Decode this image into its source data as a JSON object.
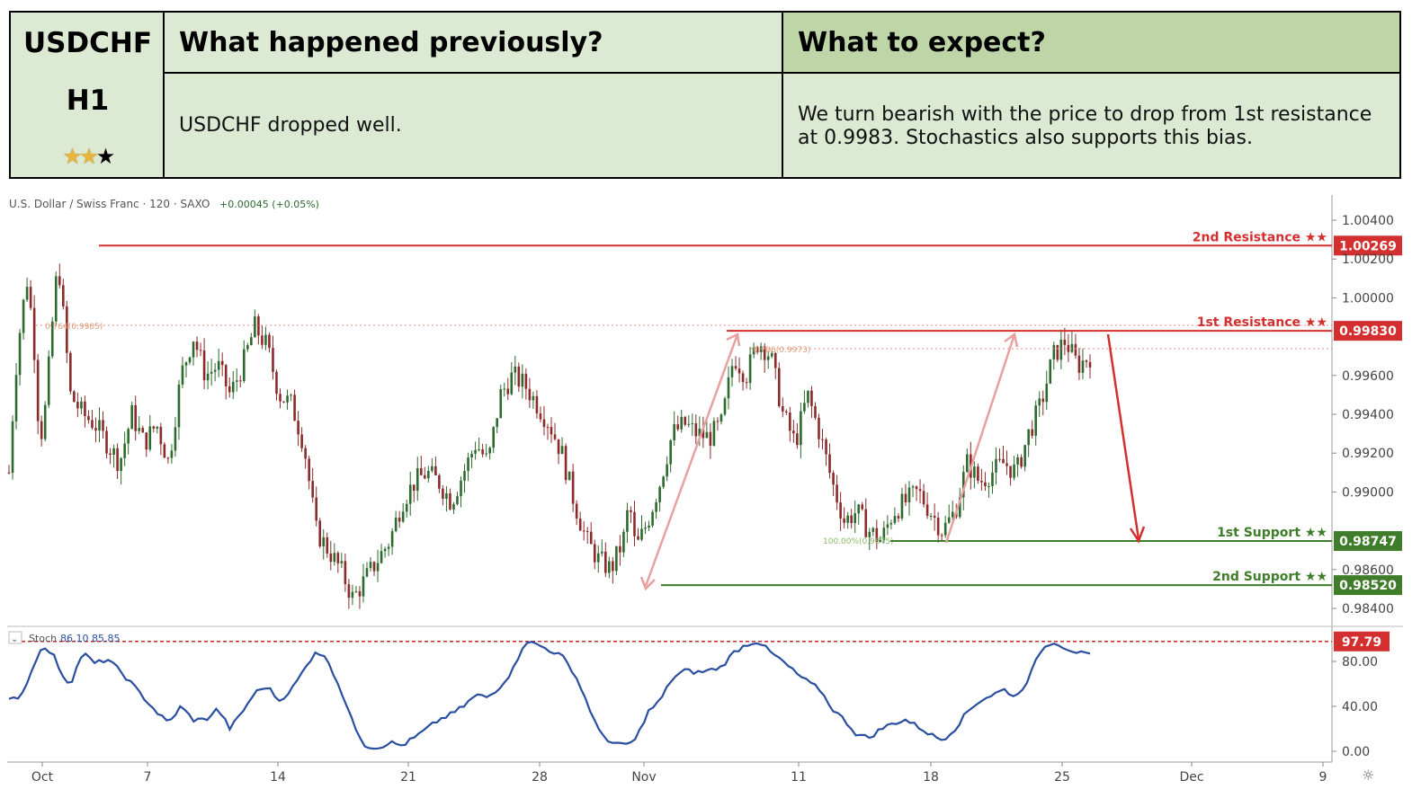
{
  "header": {
    "symbol": "USDCHF",
    "timeframe": "H1",
    "rating": {
      "filled": 2,
      "total": 3
    },
    "previous_title": "What happened previously?",
    "previous_text": "USDCHF dropped well.",
    "expect_title": "What to expect?",
    "expect_line1": "We turn bearish with the price to drop from 1st resistance",
    "expect_line2": "at 0.9983. Stochastics also supports this bias."
  },
  "chart_info": {
    "instrument": "U.S. Dollar / Swiss Franc · 120 · SAXO",
    "change": "+0.00045 (+0.05%)"
  },
  "chart_data": {
    "type": "candlestick",
    "title": "U.S. Dollar / Swiss Franc · 120 · SAXO",
    "x_ticks": [
      "Oct",
      "7",
      "14",
      "21",
      "28",
      "Nov",
      "11",
      "18",
      "25",
      "Dec",
      "9"
    ],
    "y_ticks": [
      "1.00400",
      "1.00200",
      "1.00000",
      "0.99600",
      "0.99400",
      "0.99200",
      "0.99000",
      "0.98600",
      "0.98400"
    ],
    "ylim": [
      0.9834,
      1.0045
    ],
    "price_path": [
      [
        0,
        0.991
      ],
      [
        1,
        0.996
      ],
      [
        2,
        0.999
      ],
      [
        3,
        1.001
      ],
      [
        4,
        0.998
      ],
      [
        5,
        0.9925
      ],
      [
        6,
        0.9945
      ],
      [
        7,
        0.9985
      ],
      [
        8,
        1.002
      ],
      [
        9,
        0.9985
      ],
      [
        10,
        0.995
      ],
      [
        12,
        0.994
      ],
      [
        14,
        0.9935
      ],
      [
        16,
        0.9925
      ],
      [
        18,
        0.9915
      ],
      [
        20,
        0.994
      ],
      [
        22,
        0.9925
      ],
      [
        24,
        0.9935
      ],
      [
        26,
        0.9915
      ],
      [
        28,
        0.996
      ],
      [
        30,
        0.998
      ],
      [
        32,
        0.996
      ],
      [
        34,
        0.9965
      ],
      [
        36,
        0.995
      ],
      [
        38,
        0.9965
      ],
      [
        40,
        0.9985
      ],
      [
        42,
        0.9975
      ],
      [
        44,
        0.995
      ],
      [
        46,
        0.9945
      ],
      [
        48,
        0.9925
      ],
      [
        50,
        0.988
      ],
      [
        52,
        0.987
      ],
      [
        54,
        0.986
      ],
      [
        56,
        0.9845
      ],
      [
        58,
        0.9855
      ],
      [
        60,
        0.9865
      ],
      [
        62,
        0.9875
      ],
      [
        64,
        0.9895
      ],
      [
        66,
        0.9905
      ],
      [
        68,
        0.991
      ],
      [
        70,
        0.9905
      ],
      [
        72,
        0.9895
      ],
      [
        74,
        0.991
      ],
      [
        76,
        0.9925
      ],
      [
        78,
        0.9915
      ],
      [
        80,
        0.995
      ],
      [
        82,
        0.996
      ],
      [
        84,
        0.9955
      ],
      [
        86,
        0.9945
      ],
      [
        88,
        0.9935
      ],
      [
        90,
        0.992
      ],
      [
        92,
        0.9895
      ],
      [
        94,
        0.9875
      ],
      [
        96,
        0.9865
      ],
      [
        98,
        0.986
      ],
      [
        100,
        0.9875
      ],
      [
        101,
        0.9895
      ],
      [
        102,
        0.987
      ],
      [
        104,
        0.9885
      ],
      [
        106,
        0.9905
      ],
      [
        108,
        0.993
      ],
      [
        110,
        0.9935
      ],
      [
        112,
        0.993
      ],
      [
        114,
        0.9928
      ],
      [
        116,
        0.9935
      ],
      [
        118,
        0.997
      ],
      [
        120,
        0.996
      ],
      [
        122,
        0.9978
      ],
      [
        124,
        0.997
      ],
      [
        126,
        0.994
      ],
      [
        128,
        0.9925
      ],
      [
        130,
        0.995
      ],
      [
        132,
        0.993
      ],
      [
        134,
        0.9905
      ],
      [
        136,
        0.9885
      ],
      [
        138,
        0.989
      ],
      [
        140,
        0.988
      ],
      [
        142,
        0.9875
      ],
      [
        144,
        0.989
      ],
      [
        146,
        0.9895
      ],
      [
        148,
        0.99
      ],
      [
        150,
        0.989
      ],
      [
        152,
        0.988
      ],
      [
        154,
        0.989
      ],
      [
        156,
        0.9915
      ],
      [
        158,
        0.9905
      ],
      [
        160,
        0.991
      ],
      [
        162,
        0.9915
      ],
      [
        164,
        0.991
      ],
      [
        166,
        0.993
      ],
      [
        168,
        0.9945
      ],
      [
        170,
        0.997
      ],
      [
        172,
        0.9978
      ],
      [
        174,
        0.9965
      ],
      [
        176,
        0.997
      ]
    ],
    "stoch_path": [
      [
        0,
        45
      ],
      [
        2,
        50
      ],
      [
        4,
        75
      ],
      [
        5,
        92
      ],
      [
        7,
        88
      ],
      [
        9,
        65
      ],
      [
        10,
        60
      ],
      [
        12,
        88
      ],
      [
        14,
        78
      ],
      [
        16,
        82
      ],
      [
        18,
        72
      ],
      [
        20,
        60
      ],
      [
        24,
        35
      ],
      [
        26,
        25
      ],
      [
        28,
        40
      ],
      [
        30,
        28
      ],
      [
        32,
        28
      ],
      [
        34,
        38
      ],
      [
        36,
        20
      ],
      [
        38,
        35
      ],
      [
        40,
        52
      ],
      [
        42,
        58
      ],
      [
        44,
        45
      ],
      [
        46,
        55
      ],
      [
        48,
        72
      ],
      [
        50,
        90
      ],
      [
        52,
        80
      ],
      [
        54,
        55
      ],
      [
        56,
        25
      ],
      [
        58,
        5
      ],
      [
        60,
        3
      ],
      [
        62,
        8
      ],
      [
        64,
        5
      ],
      [
        66,
        12
      ],
      [
        68,
        20
      ],
      [
        70,
        28
      ],
      [
        72,
        33
      ],
      [
        74,
        40
      ],
      [
        76,
        50
      ],
      [
        78,
        48
      ],
      [
        80,
        58
      ],
      [
        82,
        72
      ],
      [
        84,
        98
      ],
      [
        86,
        95
      ],
      [
        88,
        90
      ],
      [
        90,
        85
      ],
      [
        92,
        70
      ],
      [
        94,
        45
      ],
      [
        96,
        18
      ],
      [
        98,
        8
      ],
      [
        100,
        5
      ],
      [
        102,
        10
      ],
      [
        104,
        35
      ],
      [
        106,
        45
      ],
      [
        108,
        65
      ],
      [
        110,
        72
      ],
      [
        112,
        70
      ],
      [
        114,
        72
      ],
      [
        116,
        75
      ],
      [
        118,
        88
      ],
      [
        120,
        95
      ],
      [
        122,
        98
      ],
      [
        124,
        88
      ],
      [
        126,
        80
      ],
      [
        128,
        70
      ],
      [
        130,
        62
      ],
      [
        132,
        55
      ],
      [
        134,
        38
      ],
      [
        136,
        28
      ],
      [
        138,
        15
      ],
      [
        140,
        12
      ],
      [
        142,
        20
      ],
      [
        144,
        25
      ],
      [
        146,
        28
      ],
      [
        148,
        22
      ],
      [
        150,
        15
      ],
      [
        152,
        10
      ],
      [
        154,
        20
      ],
      [
        156,
        35
      ],
      [
        158,
        45
      ],
      [
        160,
        50
      ],
      [
        162,
        55
      ],
      [
        164,
        48
      ],
      [
        166,
        65
      ],
      [
        168,
        90
      ],
      [
        170,
        98
      ],
      [
        172,
        92
      ],
      [
        174,
        88
      ],
      [
        176,
        85
      ]
    ],
    "levels": [
      {
        "name": "2nd Resistance ★★",
        "value": 1.00269,
        "label": "1.00269",
        "color": "#d32f2f",
        "kind": "resistance"
      },
      {
        "name": "1st Resistance ★★",
        "value": 0.9983,
        "label": "0.99830",
        "color": "#d32f2f",
        "kind": "resistance"
      },
      {
        "name": "1st Support ★★",
        "value": 0.98747,
        "label": "0.98747",
        "color": "#3f7d2a",
        "kind": "support"
      },
      {
        "name": "2nd Support ★★",
        "value": 0.9852,
        "label": "0.98520",
        "color": "#3f7d2a",
        "kind": "support"
      }
    ],
    "fib_labels": {
      "left": "0.764(0.9985)",
      "mid": "0.786(0.9973)",
      "support": "100.00%(0.9875)"
    },
    "stoch": {
      "label": "Stoch",
      "values": "86.10 85.85",
      "y_ticks": [
        "80.00",
        "40.00",
        "0.00"
      ],
      "ylim": [
        0,
        100
      ],
      "current_label": "97.79",
      "current_value": 97.79,
      "line_color": "#2a4fa0"
    }
  },
  "colors": {
    "up": "#2d6a2d",
    "down": "#8b2a2a",
    "resistance": "#d32f2f",
    "support": "#3f7d2a"
  }
}
